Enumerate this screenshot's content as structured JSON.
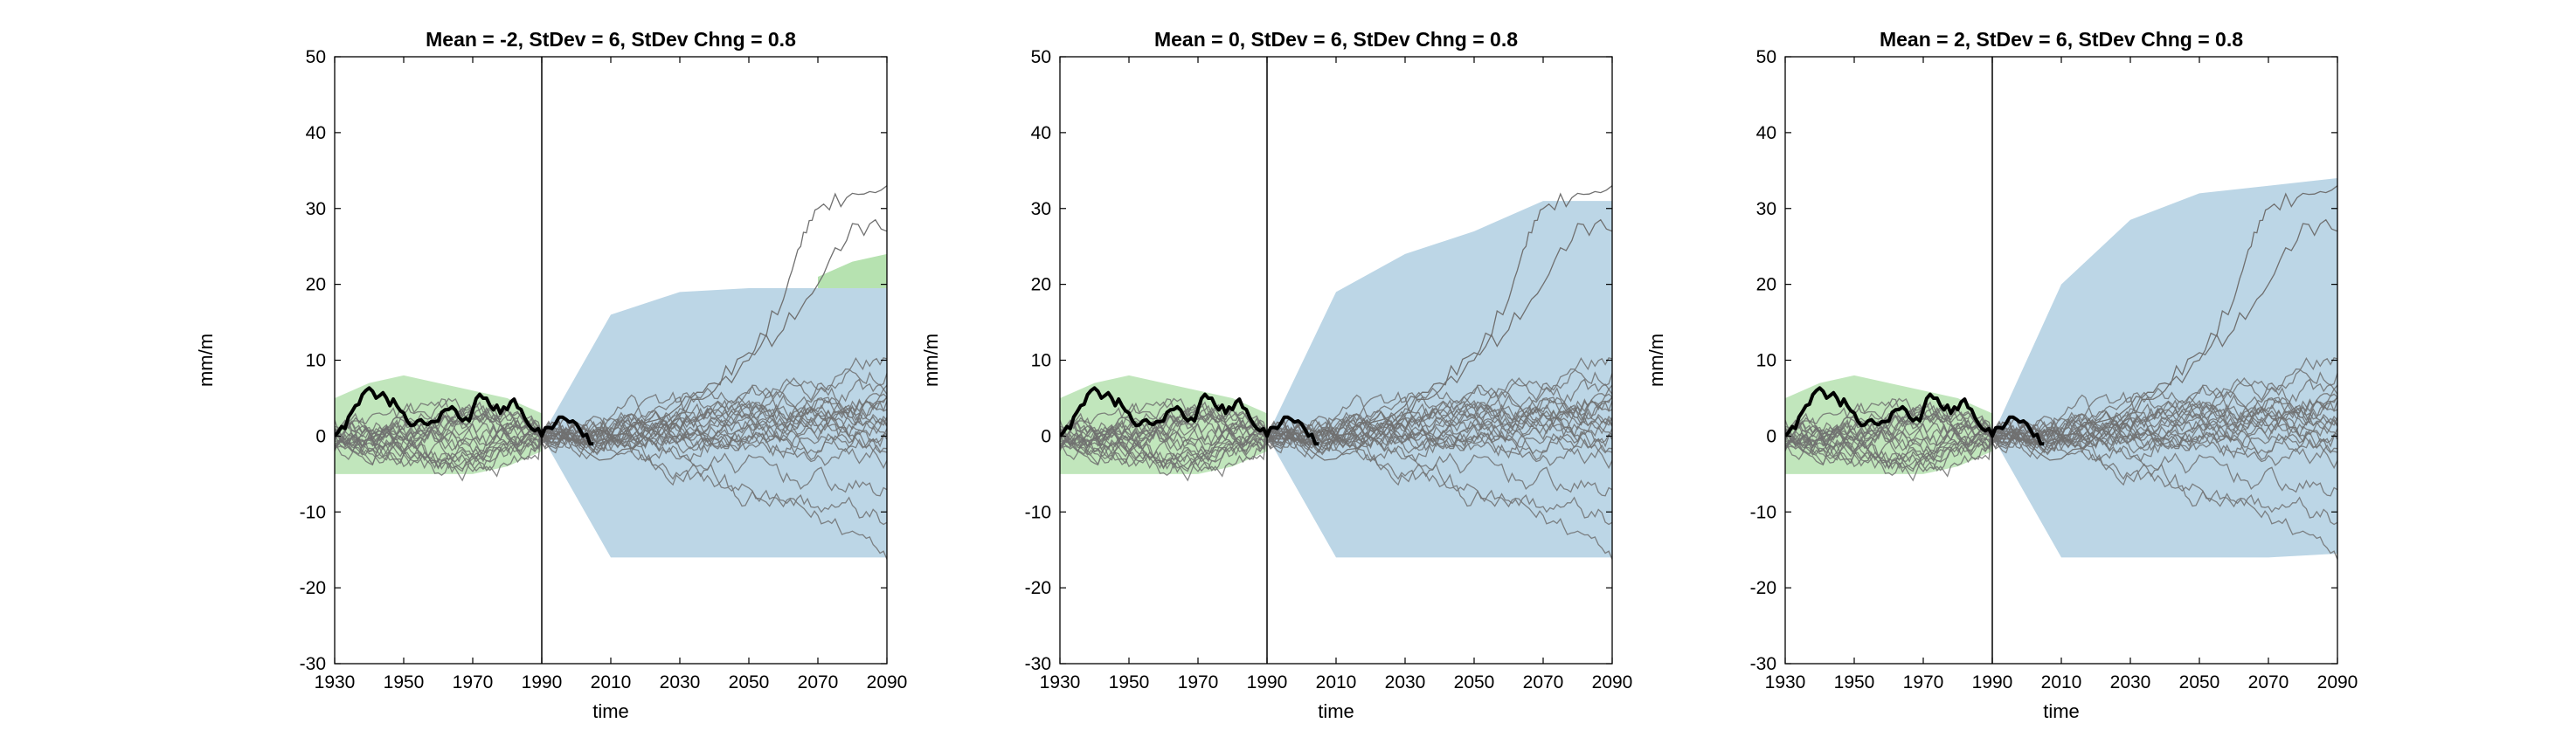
{
  "chart_data": [
    {
      "type": "line",
      "title": "Mean = -2, StDev = 6, StDev Chng = 0.8",
      "xlabel": "time",
      "ylabel": "mm/m",
      "xlim": [
        1930,
        2090
      ],
      "ylim": [
        -30,
        50
      ],
      "xticks": [
        "1930",
        "1950",
        "1970",
        "1990",
        "2010",
        "2030",
        "2050",
        "2070",
        "2090"
      ],
      "yticks": [
        "50",
        "40",
        "30",
        "20",
        "10",
        "0",
        "-10",
        "-20",
        "-30"
      ],
      "vline_x": 1990,
      "colors": {
        "historical_band": "#b6e2b0",
        "projection_band": "#bcd6e6",
        "ensemble_line": "#707070",
        "observed_line": "#000000"
      },
      "historical_band": {
        "x": [
          1930,
          1940,
          1950,
          1960,
          1970,
          1980,
          1990
        ],
        "lower": [
          -5,
          -5,
          -5,
          -5,
          -5,
          -4,
          -2
        ],
        "upper": [
          5,
          7,
          8,
          7,
          6,
          5,
          3
        ]
      },
      "projection_band": {
        "x": [
          1990,
          2010,
          2030,
          2050,
          2070,
          2090
        ],
        "lower": [
          0,
          -16,
          -16,
          -16,
          -16,
          -16
        ],
        "upper": [
          0,
          16,
          19,
          19.5,
          19.5,
          19.5
        ]
      },
      "upper_green_band": {
        "x": [
          2070,
          2080,
          2090
        ],
        "lower": [
          19.5,
          19.5,
          19.5
        ],
        "upper": [
          21,
          23,
          24
        ]
      },
      "observed": {
        "x": [
          1930,
          1933,
          1936,
          1939,
          1942,
          1945,
          1948,
          1951,
          1954,
          1957,
          1960,
          1963,
          1966,
          1969,
          1972,
          1975,
          1978,
          1981,
          1984,
          1987,
          1990,
          1993,
          1996,
          1999,
          2002,
          2005
        ],
        "y": [
          0,
          1,
          4,
          6,
          5,
          5,
          4,
          2,
          2,
          1.5,
          2,
          3.5,
          2.5,
          2,
          5.5,
          4,
          3,
          4.5,
          3.5,
          1,
          0,
          1,
          2.5,
          2,
          0,
          -1
        ]
      },
      "high_members": [
        {
          "x": [
            1990,
            2010,
            2030,
            2040,
            2050,
            2060,
            2065,
            2070,
            2080,
            2090
          ],
          "y": [
            0,
            -3,
            3,
            6,
            10,
            18,
            25,
            30,
            32,
            33
          ]
        },
        {
          "x": [
            1990,
            2010,
            2030,
            2040,
            2050,
            2060,
            2070,
            2080,
            2090
          ],
          "y": [
            0,
            0,
            4,
            7,
            11,
            14,
            20,
            28,
            27
          ]
        }
      ],
      "ensemble": {
        "n": 22,
        "projection_years": [
          1990,
          2010,
          2030,
          2050,
          2070,
          2090
        ],
        "end_values": [
          -15,
          -12,
          -8,
          -3,
          -2,
          0,
          0,
          1,
          2,
          2,
          3,
          3,
          4,
          4,
          5,
          5,
          5,
          6,
          6,
          10,
          11,
          -1
        ]
      }
    },
    {
      "type": "line",
      "title": "Mean = 0, StDev = 6, StDev Chng = 0.8",
      "xlabel": "time",
      "ylabel": "mm/m",
      "xlim": [
        1930,
        2090
      ],
      "ylim": [
        -30,
        50
      ],
      "xticks": [
        "1930",
        "1950",
        "1970",
        "1990",
        "2010",
        "2030",
        "2050",
        "2070",
        "2090"
      ],
      "yticks": [
        "50",
        "40",
        "30",
        "20",
        "10",
        "0",
        "-10",
        "-20",
        "-30"
      ],
      "vline_x": 1990,
      "colors": {
        "historical_band": "#b6e2b0",
        "projection_band": "#bcd6e6",
        "ensemble_line": "#707070",
        "observed_line": "#000000"
      },
      "historical_band": {
        "x": [
          1930,
          1940,
          1950,
          1960,
          1970,
          1980,
          1990
        ],
        "lower": [
          -5,
          -5,
          -5,
          -5,
          -5,
          -4,
          -2
        ],
        "upper": [
          5,
          7,
          8,
          7,
          6,
          5,
          3
        ]
      },
      "projection_band": {
        "x": [
          1990,
          2010,
          2030,
          2050,
          2070,
          2090
        ],
        "lower": [
          0,
          -16,
          -16,
          -16,
          -16,
          -16
        ],
        "upper": [
          0,
          19,
          24,
          27,
          31,
          31
        ]
      },
      "upper_green_band": null,
      "observed": {
        "x": [
          1930,
          1933,
          1936,
          1939,
          1942,
          1945,
          1948,
          1951,
          1954,
          1957,
          1960,
          1963,
          1966,
          1969,
          1972,
          1975,
          1978,
          1981,
          1984,
          1987,
          1990,
          1993,
          1996,
          1999,
          2002,
          2005
        ],
        "y": [
          0,
          1,
          4,
          6,
          5,
          5,
          4,
          2,
          2,
          1.5,
          2,
          3.5,
          2.5,
          2,
          5.5,
          4,
          3,
          4.5,
          3.5,
          1,
          0,
          1,
          2.5,
          2,
          0,
          -1
        ]
      },
      "high_members": [
        {
          "x": [
            1990,
            2010,
            2030,
            2040,
            2050,
            2060,
            2065,
            2070,
            2080,
            2090
          ],
          "y": [
            0,
            -3,
            3,
            6,
            10,
            18,
            25,
            30,
            32,
            33
          ]
        },
        {
          "x": [
            1990,
            2010,
            2030,
            2040,
            2050,
            2060,
            2070,
            2080,
            2090
          ],
          "y": [
            0,
            0,
            4,
            7,
            11,
            14,
            20,
            28,
            27
          ]
        }
      ],
      "ensemble": {
        "n": 22,
        "projection_years": [
          1990,
          2010,
          2030,
          2050,
          2070,
          2090
        ],
        "end_values": [
          -15,
          -12,
          -8,
          -3,
          -2,
          0,
          0,
          1,
          2,
          2,
          3,
          3,
          4,
          4,
          5,
          5,
          5,
          6,
          6,
          10,
          11,
          -1
        ]
      }
    },
    {
      "type": "line",
      "title": "Mean = 2, StDev = 6, StDev Chng = 0.8",
      "xlabel": "time",
      "ylabel": "mm/m",
      "xlim": [
        1930,
        2090
      ],
      "ylim": [
        -30,
        50
      ],
      "xticks": [
        "1930",
        "1950",
        "1970",
        "1990",
        "2010",
        "2030",
        "2050",
        "2070",
        "2090"
      ],
      "yticks": [
        "50",
        "40",
        "30",
        "20",
        "10",
        "0",
        "-10",
        "-20",
        "-30"
      ],
      "vline_x": 1990,
      "colors": {
        "historical_band": "#b6e2b0",
        "projection_band": "#bcd6e6",
        "ensemble_line": "#707070",
        "observed_line": "#000000"
      },
      "historical_band": {
        "x": [
          1930,
          1940,
          1950,
          1960,
          1970,
          1980,
          1990
        ],
        "lower": [
          -5,
          -5,
          -5,
          -5,
          -5,
          -4,
          -2
        ],
        "upper": [
          5,
          7,
          8,
          7,
          6,
          5,
          3
        ]
      },
      "projection_band": {
        "x": [
          1990,
          2010,
          2030,
          2050,
          2070,
          2090
        ],
        "lower": [
          0,
          -16,
          -16,
          -16,
          -16,
          -15.5
        ],
        "upper": [
          0,
          20,
          28.5,
          32,
          33,
          34
        ]
      },
      "upper_green_band": null,
      "observed": {
        "x": [
          1930,
          1933,
          1936,
          1939,
          1942,
          1945,
          1948,
          1951,
          1954,
          1957,
          1960,
          1963,
          1966,
          1969,
          1972,
          1975,
          1978,
          1981,
          1984,
          1987,
          1990,
          1993,
          1996,
          1999,
          2002,
          2005
        ],
        "y": [
          0,
          1,
          4,
          6,
          5,
          5,
          4,
          2,
          2,
          1.5,
          2,
          3.5,
          2.5,
          2,
          5.5,
          4,
          3,
          4.5,
          3.5,
          1,
          0,
          1,
          2.5,
          2,
          0,
          -1
        ]
      },
      "high_members": [
        {
          "x": [
            1990,
            2010,
            2030,
            2040,
            2050,
            2060,
            2065,
            2070,
            2080,
            2090
          ],
          "y": [
            0,
            -3,
            3,
            6,
            10,
            18,
            25,
            30,
            32,
            33
          ]
        },
        {
          "x": [
            1990,
            2010,
            2030,
            2040,
            2050,
            2060,
            2070,
            2080,
            2090
          ],
          "y": [
            0,
            0,
            4,
            7,
            11,
            14,
            20,
            28,
            27
          ]
        }
      ],
      "ensemble": {
        "n": 22,
        "projection_years": [
          1990,
          2010,
          2030,
          2050,
          2070,
          2090
        ],
        "end_values": [
          -15,
          -12,
          -8,
          -3,
          -2,
          0,
          0,
          1,
          2,
          2,
          3,
          3,
          4,
          4,
          5,
          5,
          5,
          6,
          6,
          10,
          11,
          -1
        ]
      }
    }
  ]
}
